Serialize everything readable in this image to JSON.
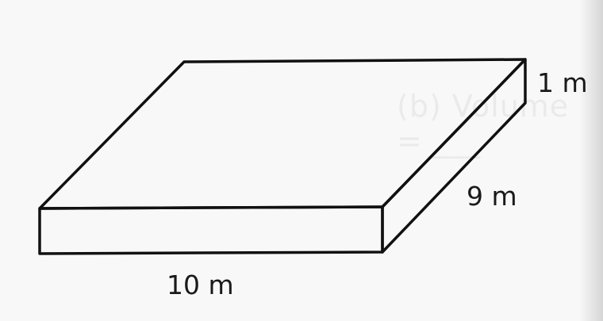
{
  "figure": {
    "height_label": "1 m",
    "depth_label": "9 m",
    "length_label": "10 m",
    "background_text": "(b) Volume = ___"
  }
}
